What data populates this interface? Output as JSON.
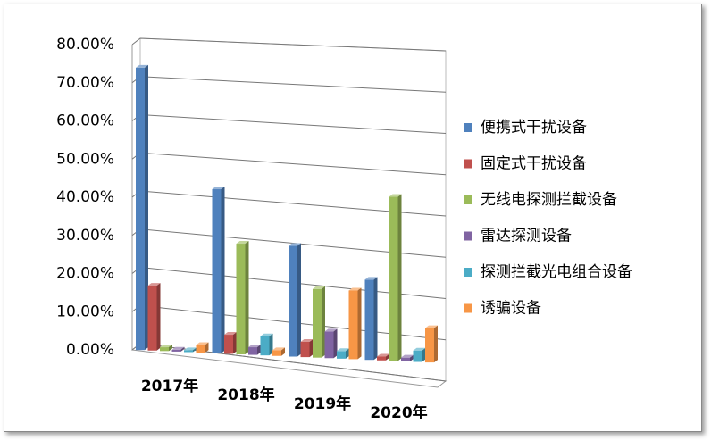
{
  "chart_data": {
    "type": "bar3d",
    "categories": [
      "2017年",
      "2018年",
      "2019年",
      "2020年"
    ],
    "series": [
      {
        "name": "便携式干扰设备",
        "color": "#4f81bd",
        "values": [
          74,
          43,
          29,
          21
        ]
      },
      {
        "name": "固定式干扰设备",
        "color": "#c0504d",
        "values": [
          17,
          5,
          4,
          1
        ]
      },
      {
        "name": "无线电探测拦截设备",
        "color": "#9bbb59",
        "values": [
          1,
          29,
          18,
          43
        ]
      },
      {
        "name": "雷达探测设备",
        "color": "#8064a2",
        "values": [
          0.5,
          2,
          7,
          1
        ]
      },
      {
        "name": "探测拦截光电组合设备",
        "color": "#4bacc6",
        "values": [
          0.5,
          5,
          2,
          3
        ]
      },
      {
        "name": "诱骗设备",
        "color": "#f79646",
        "values": [
          2,
          1.5,
          18,
          9
        ]
      }
    ],
    "ylim": [
      0,
      80
    ],
    "yticks": [
      {
        "value": 0,
        "label": "0.00%"
      },
      {
        "value": 10,
        "label": "10.00%"
      },
      {
        "value": 20,
        "label": "20.00%"
      },
      {
        "value": 30,
        "label": "30.00%"
      },
      {
        "value": 40,
        "label": "40.00%"
      },
      {
        "value": 50,
        "label": "50.00%"
      },
      {
        "value": 60,
        "label": "60.00%"
      },
      {
        "value": 70,
        "label": "70.00%"
      },
      {
        "value": 80,
        "label": "80.00%"
      }
    ],
    "grid": true,
    "legend": "right"
  }
}
